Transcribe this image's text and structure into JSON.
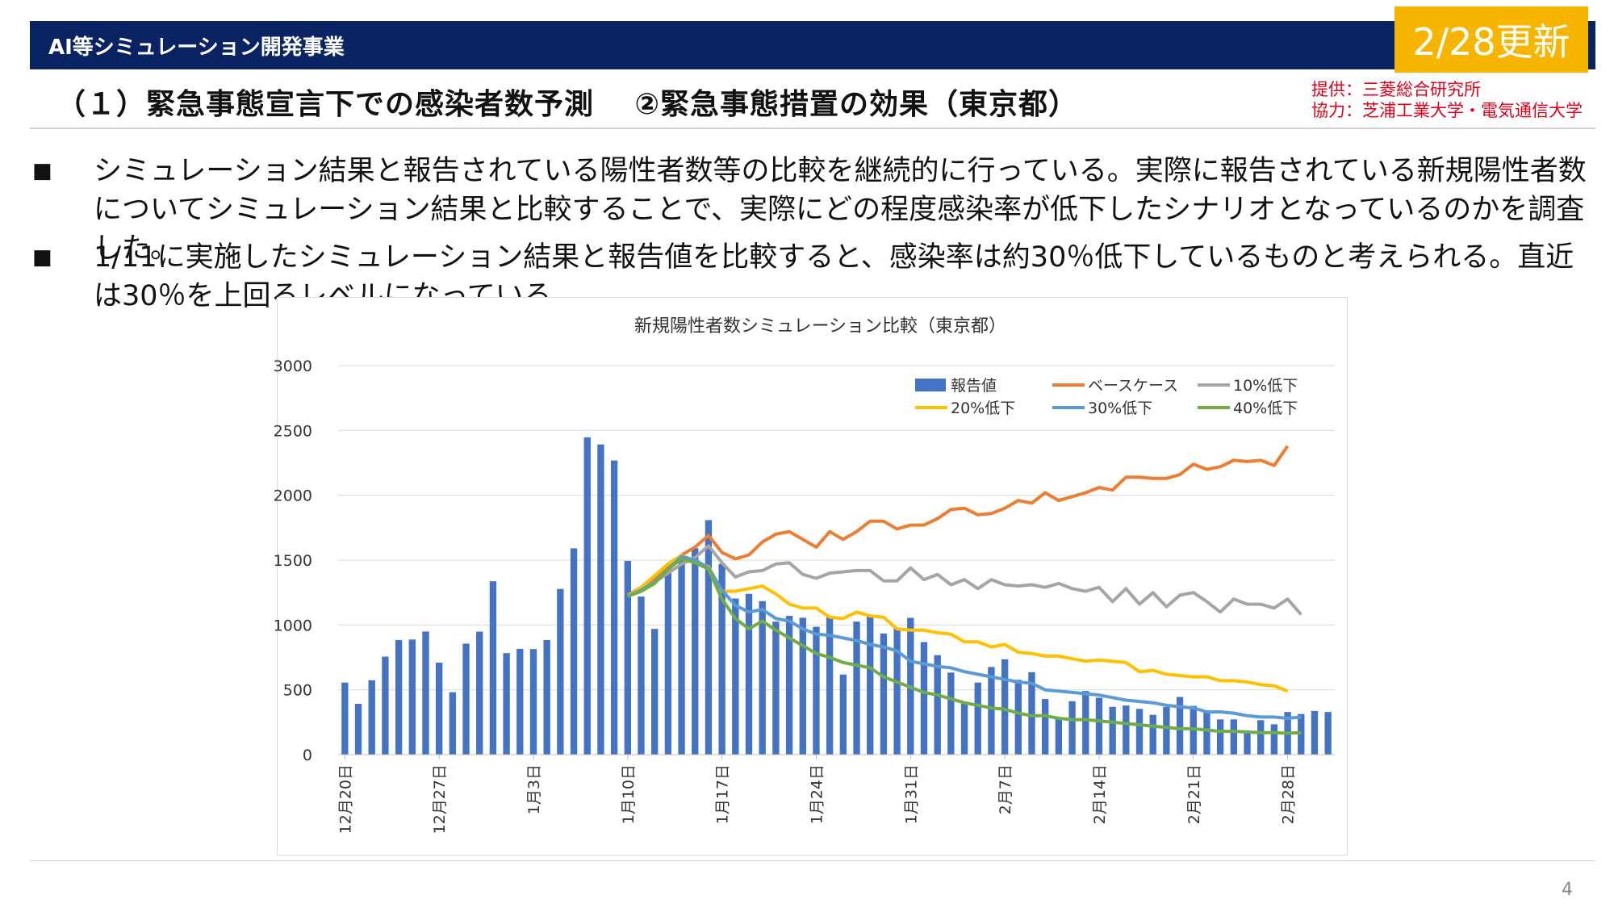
{
  "header": {
    "title": "AI等シミュレーション開発事業",
    "badge": "2/28更新"
  },
  "page_title": "（１）緊急事態宣言下での感染者数予測　 ②緊急事態措置の効果（東京都）",
  "credit": {
    "line1": "提供：三菱総合研究所",
    "line2": "協力：芝浦工業大学・電気通信大学"
  },
  "bullets": [
    {
      "mark": "■",
      "text": "シミュレーション結果と報告されている陽性者数等の比較を継続的に行っている。実際に報告されている新規陽性者数についてシミュレーション結果と比較することで、実際にどの程度感染率が低下したシナリオとなっているのかを調査した。"
    },
    {
      "mark": "■",
      "text": "1/11に実施したシミュレーション結果と報告値を比較すると、感染率は約30％低下しているものと考えられる。直近は30％を上回るレベルになっている。"
    }
  ],
  "page_number": "4",
  "colors": {
    "header": "#0a2463",
    "badge": "#f7b500",
    "credit": "#e0001b",
    "bar": "#4472c4",
    "base": "#ed7d31",
    "p10": "#a5a5a5",
    "p20": "#ffc000",
    "p30": "#5b9bd5",
    "p40": "#70ad47"
  },
  "chart_data": {
    "type": "bar",
    "title": "新規陽性者数シミュレーション比較（東京都）",
    "xlabel": "",
    "ylabel": "",
    "ylim": [
      0,
      3000
    ],
    "yticks": [
      0,
      500,
      1000,
      1500,
      2000,
      2500,
      3000
    ],
    "grid": true,
    "legend_position": "top-right",
    "x_start": "2020-12-20",
    "xtick_labels": [
      "12月20日",
      "12月27日",
      "1月3日",
      "1月10日",
      "1月17日",
      "1月24日",
      "1月31日",
      "2月7日",
      "2月14日",
      "2月21日",
      "2月28日"
    ],
    "bars": {
      "name": "報告値",
      "values": [
        556,
        392,
        574,
        756,
        884,
        888,
        950,
        709,
        481,
        856,
        949,
        1337,
        783,
        816,
        814,
        884,
        1278,
        1591,
        2447,
        2392,
        2268,
        1494,
        1219,
        970,
        1433,
        1502,
        1592,
        1809,
        1471,
        1204,
        1240,
        1184,
        1026,
        1070,
        1056,
        986,
        1070,
        618,
        1026,
        1064,
        934,
        980,
        1055,
        868,
        767,
        633,
        393,
        556,
        676,
        735,
        577,
        636,
        429,
        276,
        412,
        491,
        439,
        369,
        379,
        353,
        307,
        367,
        445,
        376,
        334,
        272,
        272,
        178,
        266,
        234,
        329,
        313,
        337,
        329
      ]
    },
    "series": [
      {
        "name": "ベースケース",
        "start_index": 21,
        "values": [
          1230,
          1290,
          1350,
          1450,
          1540,
          1600,
          1690,
          1560,
          1510,
          1540,
          1640,
          1700,
          1720,
          1660,
          1600,
          1720,
          1660,
          1720,
          1800,
          1800,
          1740,
          1770,
          1770,
          1820,
          1890,
          1900,
          1850,
          1860,
          1900,
          1960,
          1940,
          2020,
          1960,
          1990,
          2020,
          2060,
          2040,
          2140,
          2140,
          2130,
          2130,
          2160,
          2240,
          2200,
          2220,
          2270,
          2260,
          2270,
          2230,
          2380
        ]
      },
      {
        "name": "10%低下",
        "start_index": 21,
        "values": [
          1230,
          1280,
          1330,
          1400,
          1470,
          1520,
          1610,
          1480,
          1370,
          1410,
          1420,
          1470,
          1480,
          1390,
          1360,
          1400,
          1410,
          1420,
          1420,
          1340,
          1340,
          1440,
          1350,
          1390,
          1310,
          1350,
          1280,
          1350,
          1310,
          1300,
          1310,
          1290,
          1320,
          1280,
          1260,
          1290,
          1180,
          1280,
          1160,
          1250,
          1140,
          1230,
          1250,
          1180,
          1100,
          1200,
          1160,
          1160,
          1130,
          1200,
          1080
        ]
      },
      {
        "name": "20%低下",
        "start_index": 21,
        "values": [
          1220,
          1290,
          1380,
          1470,
          1540,
          1480,
          1450,
          1260,
          1260,
          1280,
          1300,
          1240,
          1160,
          1130,
          1130,
          1060,
          1050,
          1100,
          1070,
          1060,
          970,
          960,
          960,
          940,
          930,
          870,
          870,
          830,
          850,
          790,
          780,
          760,
          760,
          740,
          720,
          730,
          720,
          710,
          640,
          650,
          620,
          610,
          600,
          600,
          570,
          570,
          560,
          540,
          530,
          490
        ]
      },
      {
        "name": "30%低下",
        "start_index": 21,
        "values": [
          1220,
          1270,
          1330,
          1430,
          1530,
          1500,
          1440,
          1270,
          1150,
          1100,
          1120,
          1050,
          1030,
          970,
          930,
          920,
          900,
          880,
          850,
          830,
          800,
          720,
          700,
          680,
          670,
          640,
          620,
          600,
          580,
          560,
          550,
          500,
          490,
          480,
          470,
          460,
          440,
          420,
          410,
          400,
          380,
          370,
          360,
          330,
          330,
          320,
          300,
          290,
          290,
          280,
          290
        ]
      },
      {
        "name": "40%低下",
        "start_index": 21,
        "values": [
          1220,
          1260,
          1320,
          1430,
          1510,
          1480,
          1430,
          1200,
          1050,
          970,
          1030,
          960,
          900,
          840,
          780,
          750,
          710,
          690,
          670,
          600,
          560,
          520,
          480,
          460,
          430,
          400,
          380,
          360,
          350,
          320,
          300,
          300,
          280,
          270,
          270,
          260,
          250,
          240,
          230,
          220,
          210,
          200,
          200,
          190,
          180,
          180,
          175,
          170,
          170,
          165,
          170
        ]
      }
    ]
  }
}
